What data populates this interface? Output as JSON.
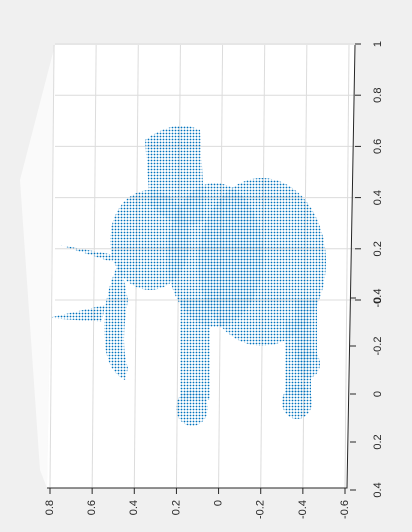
{
  "chart_data": {
    "type": "scatter3d",
    "color": "#0072bd",
    "grid": true,
    "xlim": [
      0.8,
      -0.6
    ],
    "xticks": [
      0.8,
      0.6,
      0.4,
      0.2,
      0,
      -0.2,
      -0.4,
      -0.6
    ],
    "ylim": [
      -0.4,
      0.4
    ],
    "yticks": [
      -0.4,
      -0.2,
      0,
      0.2,
      0.4
    ],
    "zlim": [
      0,
      1
    ],
    "zticks": [
      0,
      0.2,
      0.4,
      0.6,
      0.8,
      1
    ]
  }
}
